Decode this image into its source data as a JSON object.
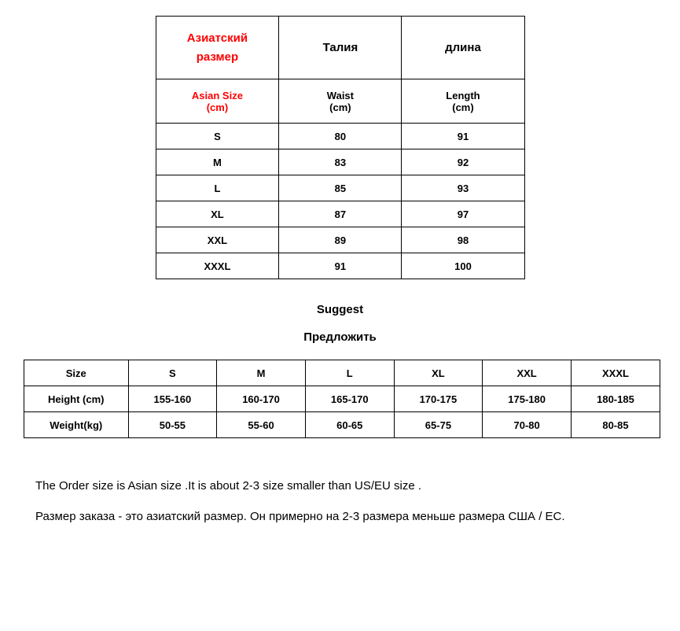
{
  "table1": {
    "header_ru": [
      "Азиатский\nразмер",
      "Талия",
      "длина"
    ],
    "header_en": [
      "Asian Size\n(cm)",
      "Waist\n(cm)",
      "Length\n(cm)"
    ],
    "rows": [
      [
        "S",
        "80",
        "91"
      ],
      [
        "M",
        "83",
        "92"
      ],
      [
        "L",
        "85",
        "93"
      ],
      [
        "XL",
        "87",
        "97"
      ],
      [
        "XXL",
        "89",
        "98"
      ],
      [
        "XXXL",
        "91",
        "100"
      ]
    ],
    "red_color": "#ff0000",
    "border_color": "#000000"
  },
  "suggest": {
    "en": "Suggest",
    "ru": "Предложить"
  },
  "table2": {
    "row_labels": [
      "Size",
      "Height (cm)",
      "Weight(kg)"
    ],
    "sizes": [
      "S",
      "M",
      "L",
      "XL",
      "XXL",
      "XXXL"
    ],
    "height": [
      "155-160",
      "160-170",
      "165-170",
      "170-175",
      "175-180",
      "180-185"
    ],
    "weight": [
      "50-55",
      "55-60",
      "60-65",
      "65-75",
      "70-80",
      "80-85"
    ]
  },
  "notes": {
    "en": "The Order size is Asian size .It is about 2-3 size smaller than US/EU size .",
    "ru": "Размер заказа - это азиатский размер. Он примерно на 2-3 размера меньше размера США / ЕС."
  }
}
